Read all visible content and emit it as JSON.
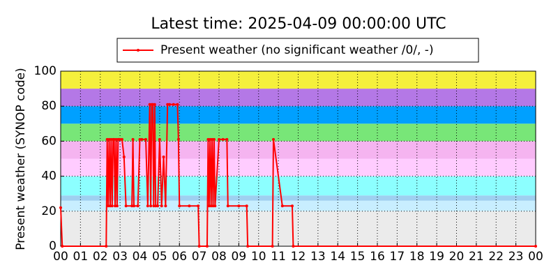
{
  "chart_data": {
    "type": "line",
    "title": "Latest time: 2025-04-09 00:00:00 UTC",
    "y_label": "Present weather (SYNOP code)",
    "legend": "top",
    "grid": true,
    "xlim": [
      0,
      24
    ],
    "ylim": [
      0,
      100
    ],
    "xticks": [
      {
        "value": 0,
        "label": "00"
      },
      {
        "value": 1,
        "label": "01"
      },
      {
        "value": 2,
        "label": "02"
      },
      {
        "value": 3,
        "label": "03"
      },
      {
        "value": 4,
        "label": "04"
      },
      {
        "value": 5,
        "label": "05"
      },
      {
        "value": 6,
        "label": "06"
      },
      {
        "value": 7,
        "label": "07"
      },
      {
        "value": 8,
        "label": "08"
      },
      {
        "value": 9,
        "label": "09"
      },
      {
        "value": 10,
        "label": "10"
      },
      {
        "value": 11,
        "label": "11"
      },
      {
        "value": 12,
        "label": "12"
      },
      {
        "value": 13,
        "label": "13"
      },
      {
        "value": 14,
        "label": "14"
      },
      {
        "value": 15,
        "label": "15"
      },
      {
        "value": 16,
        "label": "16"
      },
      {
        "value": 17,
        "label": "17"
      },
      {
        "value": 18,
        "label": "18"
      },
      {
        "value": 19,
        "label": "19"
      },
      {
        "value": 20,
        "label": "20"
      },
      {
        "value": 21,
        "label": "21"
      },
      {
        "value": 22,
        "label": "22"
      },
      {
        "value": 23,
        "label": "23"
      },
      {
        "value": 24,
        "label": "00"
      }
    ],
    "yticks": [
      0,
      20,
      40,
      60,
      80,
      100
    ],
    "bands": [
      {
        "from": 0,
        "to": 20,
        "color": "#ebebeb"
      },
      {
        "from": 20,
        "to": 26,
        "color": "#c8eeff"
      },
      {
        "from": 26,
        "to": 29,
        "color": "#9fd0f0"
      },
      {
        "from": 29,
        "to": 40,
        "color": "#8cffff"
      },
      {
        "from": 40,
        "to": 50,
        "color": "#ffccff"
      },
      {
        "from": 50,
        "to": 60,
        "color": "#f5b4f0"
      },
      {
        "from": 60,
        "to": 70,
        "color": "#78e678"
      },
      {
        "from": 70,
        "to": 80,
        "color": "#00a0ff"
      },
      {
        "from": 80,
        "to": 90,
        "color": "#b478e6"
      },
      {
        "from": 90,
        "to": 100,
        "color": "#f5f03c"
      }
    ],
    "series": [
      {
        "name": "Present weather (no significant weather /0/, -)",
        "color": "#ff0000",
        "x": [
          0,
          0.08,
          2.3,
          2.35,
          2.4,
          2.45,
          2.5,
          2.55,
          2.6,
          2.65,
          2.7,
          2.75,
          2.8,
          2.85,
          2.9,
          2.95,
          3.0,
          3.1,
          3.2,
          3.3,
          3.6,
          3.65,
          3.7,
          3.9,
          4.0,
          4.1,
          4.3,
          4.4,
          4.5,
          4.55,
          4.6,
          4.65,
          4.7,
          4.75,
          4.8,
          4.9,
          5.0,
          5.1,
          5.2,
          5.3,
          5.4,
          5.5,
          5.7,
          5.9,
          5.95,
          6.0,
          6.5,
          6.95,
          7.0,
          7.4,
          7.45,
          7.5,
          7.55,
          7.6,
          7.65,
          7.7,
          7.75,
          7.8,
          8.0,
          8.2,
          8.4,
          8.45,
          9.0,
          9.4,
          9.45,
          10.7,
          10.75,
          11.2,
          11.7,
          11.75,
          24
        ],
        "values": [
          22,
          0,
          0,
          61,
          23,
          61,
          23,
          61,
          23,
          61,
          61,
          23,
          61,
          23,
          61,
          61,
          61,
          61,
          51,
          23,
          23,
          61,
          23,
          23,
          61,
          61,
          61,
          23,
          81,
          23,
          81,
          81,
          23,
          81,
          23,
          23,
          61,
          23,
          51,
          23,
          81,
          81,
          81,
          81,
          61,
          23,
          23,
          23,
          0,
          0,
          61,
          23,
          61,
          23,
          61,
          23,
          61,
          23,
          61,
          61,
          61,
          23,
          23,
          23,
          0,
          0,
          61,
          23,
          23,
          0,
          0
        ]
      }
    ]
  }
}
